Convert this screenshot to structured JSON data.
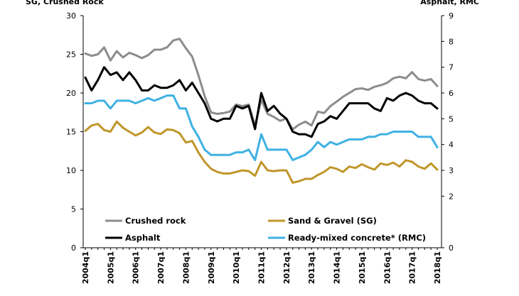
{
  "chart_data": {
    "type": "line",
    "left_axis_title": "SG, Crushed Rock",
    "right_axis_title": "Asphalt, RMC",
    "left_ylim": [
      0,
      30
    ],
    "right_ylim": [
      0,
      9
    ],
    "left_ticks": [
      0,
      5,
      10,
      15,
      20,
      25,
      30
    ],
    "right_ticks": [
      0,
      2,
      3,
      4,
      5,
      6,
      7,
      8,
      9
    ],
    "x_tick_labels": [
      "2004q1",
      "2005q1",
      "2006q1",
      "2007q1",
      "2008q1",
      "2009q1",
      "2010q1",
      "2011q1",
      "2012q1",
      "2013q1",
      "2014q1",
      "2015q1",
      "2016q1",
      "2017q1",
      "2018q1"
    ],
    "series": [
      {
        "name": "Crushed rock",
        "axis": "left",
        "color": "#8c8c8c",
        "values": [
          25.1,
          24.8,
          25.0,
          25.9,
          24.2,
          25.4,
          24.6,
          25.2,
          24.9,
          24.5,
          24.9,
          25.6,
          25.6,
          25.9,
          26.8,
          27.0,
          25.8,
          24.7,
          22.3,
          19.6,
          17.5,
          17.3,
          17.4,
          17.6,
          18.5,
          18.3,
          18.5,
          15.8,
          19.1,
          17.3,
          16.9,
          16.4,
          16.7,
          15.3,
          15.9,
          16.3,
          15.8,
          17.6,
          17.4,
          18.3,
          18.9,
          19.5,
          20.0,
          20.5,
          20.6,
          20.4,
          20.8,
          21.0,
          21.3,
          21.9,
          22.1,
          21.9,
          22.7,
          21.8,
          21.6,
          21.8,
          20.9
        ]
      },
      {
        "name": "Sand & Gravel (SG)",
        "axis": "left",
        "color": "#c0962a",
        "values": [
          15.1,
          15.8,
          16.0,
          15.2,
          15.0,
          16.3,
          15.5,
          15.0,
          14.5,
          14.9,
          15.6,
          14.9,
          14.7,
          15.3,
          15.2,
          14.8,
          13.6,
          13.8,
          12.3,
          11.1,
          10.2,
          9.8,
          9.6,
          9.6,
          9.8,
          10.0,
          9.9,
          9.3,
          11.1,
          10.0,
          9.9,
          10.0,
          10.0,
          8.4,
          8.6,
          8.9,
          8.9,
          9.4,
          9.8,
          10.4,
          10.2,
          9.8,
          10.5,
          10.3,
          10.8,
          10.4,
          10.1,
          10.9,
          10.7,
          11.0,
          10.5,
          11.3,
          11.1,
          10.5,
          10.2,
          10.9,
          10.1
        ]
      },
      {
        "name": "Asphalt",
        "axis": "right",
        "color": "#000000",
        "values": [
          6.6,
          6.1,
          6.5,
          7.0,
          6.7,
          6.8,
          6.5,
          6.8,
          6.5,
          6.1,
          6.1,
          6.3,
          6.2,
          6.2,
          6.3,
          6.5,
          6.1,
          6.4,
          6.0,
          5.6,
          5.0,
          4.9,
          5.0,
          5.0,
          5.5,
          5.4,
          5.5,
          4.6,
          6.0,
          5.3,
          5.5,
          5.2,
          5.0,
          4.5,
          4.4,
          4.4,
          4.3,
          4.8,
          4.9,
          5.1,
          5.0,
          5.3,
          5.6,
          5.6,
          5.6,
          5.6,
          5.4,
          5.3,
          5.8,
          5.7,
          5.9,
          6.0,
          5.9,
          5.7,
          5.6,
          5.6,
          5.4
        ]
      },
      {
        "name": "Ready-mixed concrete* (RMC)",
        "axis": "right",
        "color": "#3fb1e3",
        "values": [
          5.6,
          5.6,
          5.7,
          5.7,
          5.4,
          5.7,
          5.7,
          5.7,
          5.6,
          5.7,
          5.8,
          5.7,
          5.8,
          5.9,
          5.9,
          5.4,
          5.4,
          4.7,
          4.3,
          3.8,
          3.6,
          3.6,
          3.6,
          3.6,
          3.7,
          3.7,
          3.8,
          3.4,
          4.4,
          3.8,
          3.8,
          3.8,
          3.8,
          3.4,
          3.5,
          3.6,
          3.8,
          4.1,
          3.9,
          4.1,
          4.0,
          4.1,
          4.2,
          4.2,
          4.2,
          4.3,
          4.3,
          4.4,
          4.4,
          4.5,
          4.5,
          4.5,
          4.5,
          4.3,
          4.3,
          4.3,
          3.9
        ]
      }
    ]
  }
}
